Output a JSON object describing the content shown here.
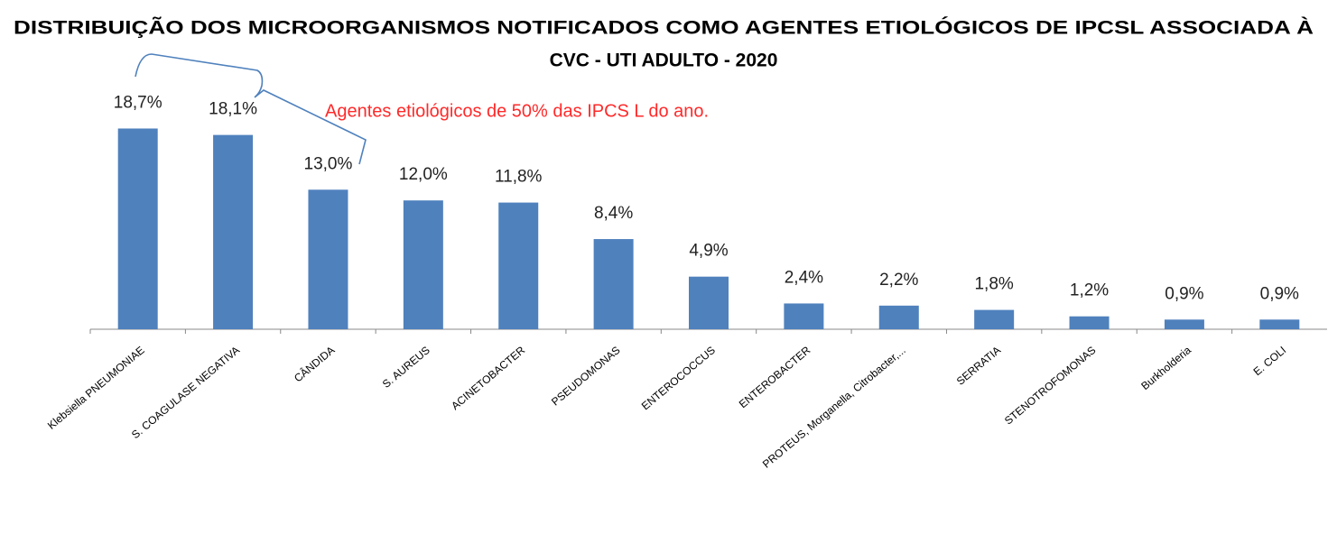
{
  "chart_data": {
    "type": "bar",
    "title": [
      "DISTRIBUIÇÃO DOS MICROORGANISMOS NOTIFICADOS COMO AGENTES ETIOLÓGICOS DE IPCSL ASSOCIADA À",
      "CVC  - UTI ADULTO - 2020"
    ],
    "annotation": "Agentes etiológicos de 50% das IPCS L do ano.",
    "categories": [
      "Klebsiella PNEUMONIAE",
      "S. COAGULASE NEGATIVA",
      "CÂNDIDA",
      "S. AUREUS",
      "ACINETOBACTER",
      "PSEUDOMONAS",
      "ENTEROCOCCUS",
      "ENTEROBACTER",
      "PROTEUS, Morganella, Citrobacter,...",
      "SERRATIA",
      "STENOTROFOMONAS",
      "Burkholderia",
      "E. COLI"
    ],
    "values": [
      18.7,
      18.1,
      13.0,
      12.0,
      11.8,
      8.4,
      4.9,
      2.4,
      2.2,
      1.8,
      1.2,
      0.9,
      0.9
    ],
    "value_labels": [
      "18,7%",
      "18,1%",
      "13,0%",
      "12,0%",
      "11,8%",
      "8,4%",
      "4,9%",
      "2,4%",
      "2,2%",
      "1,8%",
      "1,2%",
      "0,9%",
      "0,9%"
    ],
    "color": "#4f81bd"
  }
}
